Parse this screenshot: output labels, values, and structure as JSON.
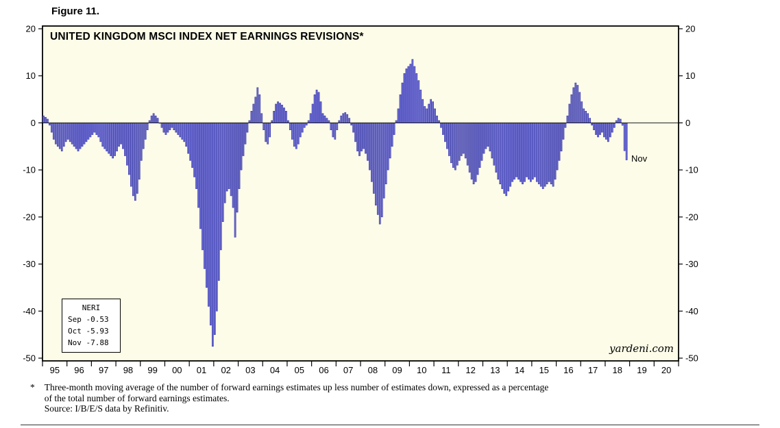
{
  "figure_label": "Figure 11.",
  "chart_data": {
    "type": "bar",
    "title": "UNITED KINGDOM MSCI INDEX NET EARNINGS REVISIONS*",
    "ylabel": "",
    "xlabel": "",
    "ylim": [
      -50,
      20
    ],
    "yticks": [
      20,
      10,
      0,
      -10,
      -20,
      -30,
      -40,
      -50
    ],
    "grid": false,
    "legend_position": "bottom-left",
    "plot_bg": "#fdfce8",
    "bar_fill": "#6b6bd0",
    "bar_stroke": "#2828a0",
    "start_year": 1995,
    "end_year": 2020,
    "x_years": [
      "95",
      "96",
      "97",
      "98",
      "99",
      "00",
      "01",
      "02",
      "03",
      "04",
      "05",
      "06",
      "07",
      "08",
      "09",
      "10",
      "11",
      "12",
      "13",
      "14",
      "15",
      "16",
      "17",
      "18",
      "19",
      "20"
    ],
    "series": [
      {
        "name": "NERI",
        "start_month": "1995-01",
        "end_month": "2018-11",
        "values": [
          1.5,
          1.2,
          0.8,
          -0.5,
          -2,
          -3.5,
          -4.5,
          -5,
          -5.5,
          -6,
          -5,
          -4,
          -3.5,
          -4,
          -4.5,
          -5,
          -5.5,
          -6,
          -5.5,
          -5,
          -4.5,
          -4,
          -3.5,
          -3,
          -2.5,
          -2,
          -2.5,
          -3,
          -4,
          -5,
          -5.5,
          -6,
          -6.5,
          -7,
          -7.5,
          -7,
          -6,
          -5,
          -4.5,
          -5.5,
          -7,
          -9,
          -11,
          -13.5,
          -15.5,
          -16.5,
          -15,
          -12,
          -8,
          -5.5,
          -3.5,
          -1.5,
          0.5,
          1.5,
          2,
          1.5,
          1,
          0,
          -1,
          -2,
          -2.5,
          -2,
          -1.5,
          -1,
          -1.5,
          -2,
          -2.5,
          -3,
          -3.5,
          -4,
          -5,
          -6.5,
          -8,
          -9.5,
          -11.5,
          -14,
          -18,
          -22.5,
          -27,
          -31,
          -35,
          -39,
          -43,
          -47.5,
          -45,
          -40,
          -33.5,
          -27,
          -21,
          -17,
          -14.5,
          -14,
          -15.5,
          -18,
          -24.3,
          -19,
          -14,
          -10,
          -7,
          -4.5,
          -2,
          0.5,
          2.5,
          4,
          5.5,
          7.5,
          6,
          2,
          -1.5,
          -4,
          -4.5,
          -3,
          0.5,
          2.5,
          4,
          4.5,
          4.2,
          3.8,
          3.2,
          2.5,
          0.5,
          -1.5,
          -3.5,
          -5,
          -5.5,
          -4.5,
          -3,
          -2,
          -1,
          -0.5,
          0.5,
          2,
          4,
          6,
          7,
          6.5,
          4.5,
          2,
          1.5,
          1,
          0.5,
          -1.5,
          -3,
          -3.5,
          -1.5,
          0.5,
          1.5,
          2,
          2.2,
          1.8,
          1,
          -0.5,
          -2,
          -4,
          -6,
          -7,
          -6,
          -5.5,
          -6.5,
          -8,
          -10,
          -12.5,
          -15,
          -17.5,
          -19.5,
          -21.5,
          -20,
          -16,
          -13,
          -10,
          -7.5,
          -5,
          -2.5,
          0.5,
          3,
          6,
          8.5,
          10.5,
          11.5,
          12,
          12.5,
          13.5,
          12,
          10.5,
          9,
          7,
          5,
          3.5,
          3,
          4,
          5,
          4.5,
          3,
          1.5,
          0.5,
          -1,
          -2.5,
          -4,
          -5.5,
          -7,
          -8.5,
          -9.5,
          -10,
          -9,
          -8,
          -7,
          -6.5,
          -7.5,
          -9,
          -10.5,
          -12,
          -13,
          -12.5,
          -11,
          -9.5,
          -8,
          -6.5,
          -5.5,
          -5,
          -6,
          -7.5,
          -9,
          -10.5,
          -12,
          -13,
          -14,
          -15,
          -15.5,
          -14.5,
          -13.5,
          -12.5,
          -12,
          -11.5,
          -12,
          -12.5,
          -13,
          -12.5,
          -11.5,
          -12,
          -12.5,
          -12,
          -11.5,
          -12.5,
          -13,
          -13.5,
          -14,
          -13.5,
          -13,
          -12.5,
          -13,
          -13.5,
          -12,
          -10,
          -8,
          -6,
          -3.5,
          -1,
          1.5,
          4,
          6,
          7.5,
          8.5,
          8,
          6.5,
          4.5,
          3,
          2.5,
          2,
          1,
          -0.5,
          -1.5,
          -2.5,
          -3,
          -2.5,
          -2,
          -3,
          -3.5,
          -4,
          -3,
          -2,
          -1,
          0.5,
          1,
          0.8,
          -0.53,
          -5.93,
          -7.88
        ]
      }
    ],
    "legend": {
      "title": "NERI",
      "rows": [
        "Sep -0.53",
        "Oct -5.93",
        "Nov -7.88"
      ]
    },
    "annotation_last_bar": "Nov",
    "watermark": "yardeni.com"
  },
  "footnote": {
    "marker": "*",
    "line1": "Three-month moving average of the number of forward earnings estimates up less number of estimates down, expressed as a percentage",
    "line2": "of the total number of forward earnings estimates.",
    "source": "Source: I/B/E/S data by Refinitiv."
  }
}
